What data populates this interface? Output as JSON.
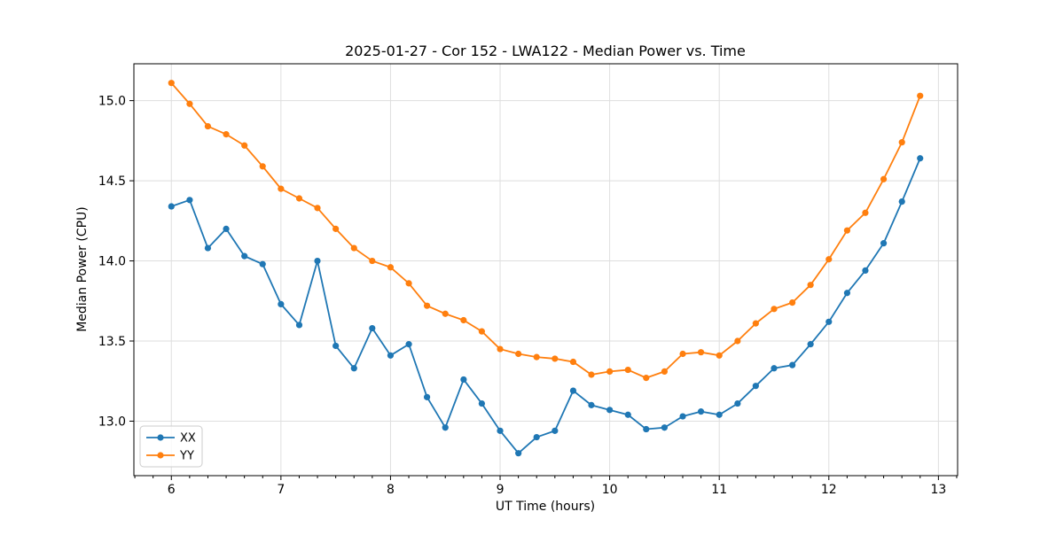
{
  "chart_data": {
    "type": "line",
    "title": "2025-01-27 - Cor 152 - LWA122 - Median Power vs. Time",
    "xlabel": "UT Time (hours)",
    "ylabel": "Median Power (CPU)",
    "grid": true,
    "legend_position": "lower left",
    "xlim": [
      5.658,
      13.175
    ],
    "ylim": [
      12.66,
      15.23
    ],
    "x_ticks": [
      {
        "v": 6,
        "label": "6"
      },
      {
        "v": 7,
        "label": "7"
      },
      {
        "v": 8,
        "label": "8"
      },
      {
        "v": 9,
        "label": "9"
      },
      {
        "v": 10,
        "label": "10"
      },
      {
        "v": 11,
        "label": "11"
      },
      {
        "v": 12,
        "label": "12"
      },
      {
        "v": 13,
        "label": "13"
      }
    ],
    "y_ticks": [
      {
        "v": 13.0,
        "label": "13.0"
      },
      {
        "v": 13.5,
        "label": "13.5"
      },
      {
        "v": 14.0,
        "label": "14.0"
      },
      {
        "v": 14.5,
        "label": "14.5"
      },
      {
        "v": 15.0,
        "label": "15.0"
      }
    ],
    "x_minor_tick_step": 0.1666667,
    "colors": {
      "grid": "#dedede",
      "spine": "#000000",
      "legend_border": "#cccccc",
      "series_xx": "#1f77b4",
      "series_yy": "#ff7f0e"
    },
    "x": [
      6.0,
      6.167,
      6.333,
      6.5,
      6.667,
      6.833,
      7.0,
      7.167,
      7.333,
      7.5,
      7.667,
      7.833,
      8.0,
      8.167,
      8.333,
      8.5,
      8.667,
      8.833,
      9.0,
      9.167,
      9.333,
      9.5,
      9.667,
      9.833,
      10.0,
      10.167,
      10.333,
      10.5,
      10.667,
      10.833,
      11.0,
      11.167,
      11.333,
      11.5,
      11.667,
      11.833,
      12.0,
      12.167,
      12.333,
      12.5,
      12.667,
      12.833
    ],
    "series": [
      {
        "name": "XX",
        "color": "#1f77b4",
        "marker": "circle",
        "values": [
          14.34,
          14.38,
          14.08,
          14.2,
          14.03,
          13.98,
          13.73,
          13.6,
          14.0,
          13.47,
          13.33,
          13.58,
          13.41,
          13.48,
          13.15,
          12.96,
          13.26,
          13.11,
          12.94,
          12.8,
          12.9,
          12.94,
          13.19,
          13.1,
          13.07,
          13.04,
          12.95,
          12.96,
          13.03,
          13.06,
          13.04,
          13.11,
          13.22,
          13.33,
          13.35,
          13.48,
          13.62,
          13.8,
          13.94,
          14.11,
          14.37,
          14.64
        ]
      },
      {
        "name": "YY",
        "color": "#ff7f0e",
        "marker": "circle",
        "values": [
          15.11,
          14.98,
          14.84,
          14.79,
          14.72,
          14.59,
          14.45,
          14.39,
          14.33,
          14.2,
          14.08,
          14.0,
          13.96,
          13.86,
          13.72,
          13.67,
          13.63,
          13.56,
          13.45,
          13.42,
          13.4,
          13.39,
          13.37,
          13.29,
          13.31,
          13.32,
          13.27,
          13.31,
          13.42,
          13.43,
          13.41,
          13.5,
          13.61,
          13.7,
          13.74,
          13.85,
          14.01,
          14.19,
          14.3,
          14.51,
          14.74,
          15.03
        ]
      }
    ]
  }
}
